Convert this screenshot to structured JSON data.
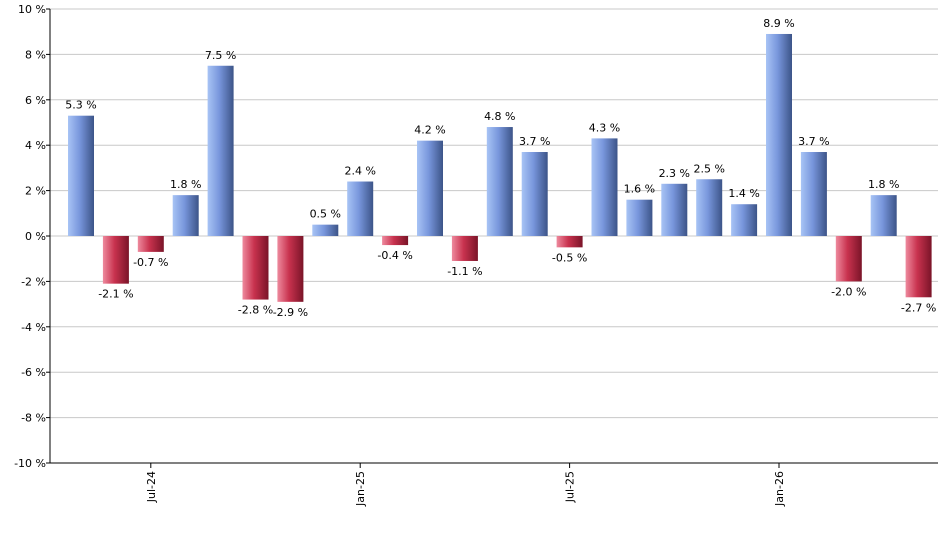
{
  "chart_data": {
    "type": "bar",
    "title": "",
    "xlabel": "",
    "ylabel": "",
    "ylim": [
      -10,
      10
    ],
    "y_ticks": [
      10,
      8,
      6,
      4,
      2,
      0,
      -2,
      -4,
      -6,
      -8,
      -10
    ],
    "y_tick_labels": [
      "10 %",
      "8 %",
      "6 %",
      "4 %",
      "2 %",
      "0 %",
      "-2 %",
      "-4 %",
      "-6 %",
      "-8 %",
      "-10 %"
    ],
    "x_tick_labels": [
      "Jul-24",
      "Jan-25",
      "Jul-25",
      "Jan-26"
    ],
    "x_tick_bar_index": [
      2,
      8,
      14,
      20
    ],
    "grid": true,
    "legend": "none",
    "values": [
      5.3,
      -2.1,
      -0.7,
      1.8,
      7.5,
      -2.8,
      -2.9,
      0.5,
      2.4,
      -0.4,
      4.2,
      -1.1,
      4.8,
      3.7,
      -0.5,
      4.3,
      1.6,
      2.3,
      2.5,
      1.4,
      8.9,
      3.7,
      -2.0,
      1.8,
      -2.7
    ],
    "data_labels": [
      "5.3 %",
      "-2.1 %",
      "-0.7 %",
      "1.8 %",
      "7.5 %",
      "-2.8 %",
      "-2.9 %",
      "0.5 %",
      "2.4 %",
      "-0.4 %",
      "4.2 %",
      "-1.1 %",
      "4.8 %",
      "3.7 %",
      "-0.5 %",
      "4.3 %",
      "1.6 %",
      "2.3 %",
      "2.5 %",
      "1.4 %",
      "8.9 %",
      "3.7 %",
      "-2.0 %",
      "1.8 %",
      "-2.7 %"
    ],
    "colors": {
      "positive": "#7d9fe0",
      "negative": "#c8324e",
      "grid": "#c8c8c8",
      "axis": "#000000"
    }
  }
}
